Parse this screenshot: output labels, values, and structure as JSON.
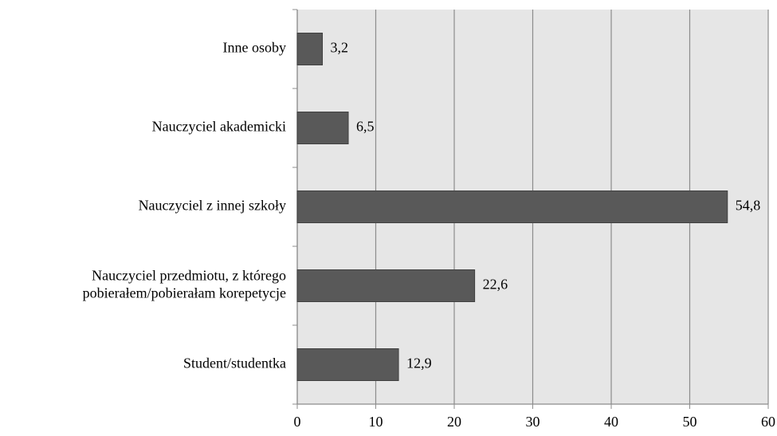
{
  "chart_data": {
    "type": "bar",
    "orientation": "horizontal",
    "categories": [
      "Inne osoby",
      "Nauczyciel akademicki",
      "Nauczyciel z innej szkoły",
      "Nauczyciel przedmiotu, z którego\npobierałem/pobierałam korepetycje",
      "Student/studentka"
    ],
    "values": [
      3.2,
      6.5,
      54.8,
      22.6,
      12.9
    ],
    "value_labels": [
      "3,2",
      "6,5",
      "54,8",
      "22,6",
      "12,9"
    ],
    "color": "#595959",
    "xlim": [
      0,
      60
    ],
    "xticks": [
      0,
      10,
      20,
      30,
      40,
      50,
      60
    ],
    "grid": true
  }
}
